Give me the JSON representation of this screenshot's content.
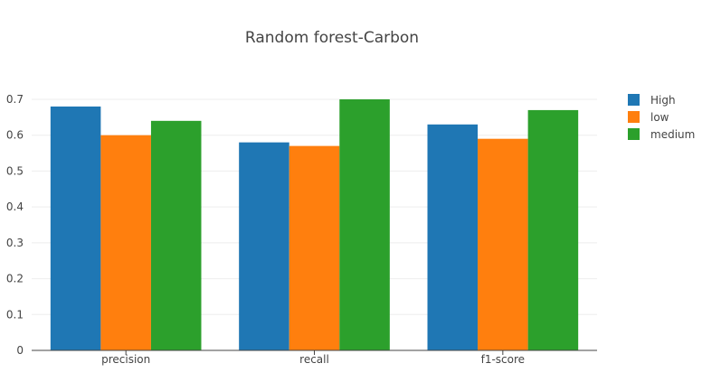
{
  "chart_data": {
    "type": "bar",
    "title": "Random forest-Carbon",
    "xlabel": "",
    "ylabel": "",
    "categories": [
      "precision",
      "recall",
      "f1-score"
    ],
    "series": [
      {
        "name": "High",
        "values": [
          0.68,
          0.58,
          0.63
        ],
        "color": "#1f77b4"
      },
      {
        "name": "low",
        "values": [
          0.6,
          0.57,
          0.59
        ],
        "color": "#ff7f0e"
      },
      {
        "name": "medium",
        "values": [
          0.64,
          0.7,
          0.67
        ],
        "color": "#2ca02c"
      }
    ],
    "ylim": [
      0,
      0.7
    ],
    "yticks": [
      "0",
      "0.1",
      "0.2",
      "0.3",
      "0.4",
      "0.5",
      "0.6",
      "0.7"
    ],
    "grid": true,
    "legend_position": "top-right"
  }
}
